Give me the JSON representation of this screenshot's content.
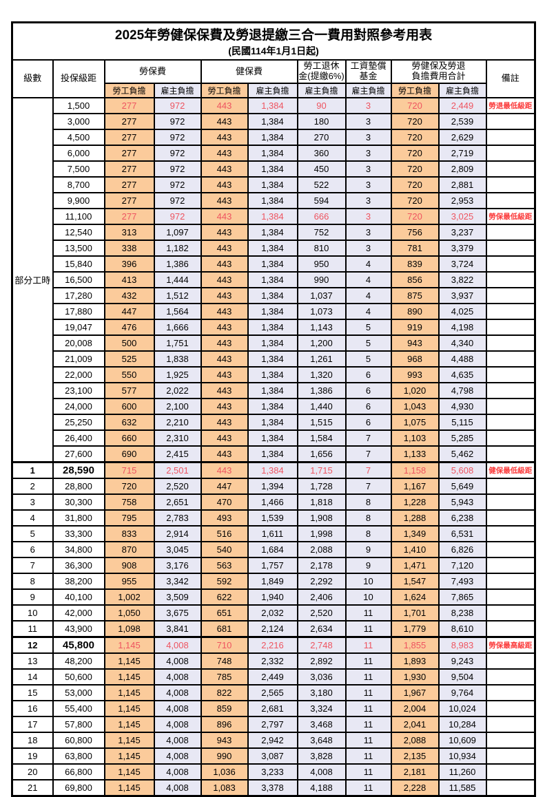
{
  "title": "2025年勞健保保費及勞退提繳三合一費用對照參考用表",
  "subtitle": "(民國114年1月1日起)",
  "header": {
    "level": "級數",
    "bracket": "投保級距",
    "labor_insurance": "勞保費",
    "health_insurance": "健保費",
    "pension_line1": "勞工退休",
    "pension_line2": "金(提繳6%)",
    "wage_fund_line1": "工資墊償",
    "wage_fund_line2": "基金",
    "total_line1": "勞健保及勞退",
    "total_line2": "負擔費用合計",
    "note": "備註",
    "employee_share": "勞工負擔",
    "employer_share": "雇主負擔"
  },
  "part_time_label": "部分工時",
  "part_time_rowspan": 23,
  "colors": {
    "employee_column_bg": "#fbcb9b",
    "employer_column_bg": "#e8e8f4",
    "highlight_value_red": "#ee5460",
    "note_red": "#fb3b3b"
  },
  "rows": [
    {
      "level": "",
      "bracket": "1,500",
      "values": [
        "277",
        "972",
        "443",
        "1,384",
        "90",
        "3",
        "720",
        "2,449"
      ],
      "note": "勞退最低級距",
      "red": true,
      "bold": false,
      "thickTop": false
    },
    {
      "level": "",
      "bracket": "3,000",
      "values": [
        "277",
        "972",
        "443",
        "1,384",
        "180",
        "3",
        "720",
        "2,539"
      ],
      "note": "",
      "red": false,
      "bold": false,
      "thickTop": false
    },
    {
      "level": "",
      "bracket": "4,500",
      "values": [
        "277",
        "972",
        "443",
        "1,384",
        "270",
        "3",
        "720",
        "2,629"
      ],
      "note": "",
      "red": false,
      "bold": false,
      "thickTop": false
    },
    {
      "level": "",
      "bracket": "6,000",
      "values": [
        "277",
        "972",
        "443",
        "1,384",
        "360",
        "3",
        "720",
        "2,719"
      ],
      "note": "",
      "red": false,
      "bold": false,
      "thickTop": false
    },
    {
      "level": "",
      "bracket": "7,500",
      "values": [
        "277",
        "972",
        "443",
        "1,384",
        "450",
        "3",
        "720",
        "2,809"
      ],
      "note": "",
      "red": false,
      "bold": false,
      "thickTop": false
    },
    {
      "level": "",
      "bracket": "8,700",
      "values": [
        "277",
        "972",
        "443",
        "1,384",
        "522",
        "3",
        "720",
        "2,881"
      ],
      "note": "",
      "red": false,
      "bold": false,
      "thickTop": false
    },
    {
      "level": "",
      "bracket": "9,900",
      "values": [
        "277",
        "972",
        "443",
        "1,384",
        "594",
        "3",
        "720",
        "2,953"
      ],
      "note": "",
      "red": false,
      "bold": false,
      "thickTop": false
    },
    {
      "level": "",
      "bracket": "11,100",
      "values": [
        "277",
        "972",
        "443",
        "1,384",
        "666",
        "3",
        "720",
        "3,025"
      ],
      "note": "勞保最低級距",
      "red": true,
      "bold": false,
      "thickTop": false
    },
    {
      "level": "",
      "bracket": "12,540",
      "values": [
        "313",
        "1,097",
        "443",
        "1,384",
        "752",
        "3",
        "756",
        "3,237"
      ],
      "note": "",
      "red": false,
      "bold": false,
      "thickTop": false
    },
    {
      "level": "",
      "bracket": "13,500",
      "values": [
        "338",
        "1,182",
        "443",
        "1,384",
        "810",
        "3",
        "781",
        "3,379"
      ],
      "note": "",
      "red": false,
      "bold": false,
      "thickTop": false
    },
    {
      "level": "",
      "bracket": "15,840",
      "values": [
        "396",
        "1,386",
        "443",
        "1,384",
        "950",
        "4",
        "839",
        "3,724"
      ],
      "note": "",
      "red": false,
      "bold": false,
      "thickTop": false
    },
    {
      "level": "",
      "bracket": "16,500",
      "values": [
        "413",
        "1,444",
        "443",
        "1,384",
        "990",
        "4",
        "856",
        "3,822"
      ],
      "note": "",
      "red": false,
      "bold": false,
      "thickTop": false
    },
    {
      "level": "",
      "bracket": "17,280",
      "values": [
        "432",
        "1,512",
        "443",
        "1,384",
        "1,037",
        "4",
        "875",
        "3,937"
      ],
      "note": "",
      "red": false,
      "bold": false,
      "thickTop": false
    },
    {
      "level": "",
      "bracket": "17,880",
      "values": [
        "447",
        "1,564",
        "443",
        "1,384",
        "1,073",
        "4",
        "890",
        "4,025"
      ],
      "note": "",
      "red": false,
      "bold": false,
      "thickTop": false
    },
    {
      "level": "",
      "bracket": "19,047",
      "values": [
        "476",
        "1,666",
        "443",
        "1,384",
        "1,143",
        "5",
        "919",
        "4,198"
      ],
      "note": "",
      "red": false,
      "bold": false,
      "thickTop": false
    },
    {
      "level": "",
      "bracket": "20,008",
      "values": [
        "500",
        "1,751",
        "443",
        "1,384",
        "1,200",
        "5",
        "943",
        "4,340"
      ],
      "note": "",
      "red": false,
      "bold": false,
      "thickTop": false
    },
    {
      "level": "",
      "bracket": "21,009",
      "values": [
        "525",
        "1,838",
        "443",
        "1,384",
        "1,261",
        "5",
        "968",
        "4,488"
      ],
      "note": "",
      "red": false,
      "bold": false,
      "thickTop": false
    },
    {
      "level": "",
      "bracket": "22,000",
      "values": [
        "550",
        "1,925",
        "443",
        "1,384",
        "1,320",
        "6",
        "993",
        "4,635"
      ],
      "note": "",
      "red": false,
      "bold": false,
      "thickTop": false
    },
    {
      "level": "",
      "bracket": "23,100",
      "values": [
        "577",
        "2,022",
        "443",
        "1,384",
        "1,386",
        "6",
        "1,020",
        "4,798"
      ],
      "note": "",
      "red": false,
      "bold": false,
      "thickTop": false
    },
    {
      "level": "",
      "bracket": "24,000",
      "values": [
        "600",
        "2,100",
        "443",
        "1,384",
        "1,440",
        "6",
        "1,043",
        "4,930"
      ],
      "note": "",
      "red": false,
      "bold": false,
      "thickTop": false
    },
    {
      "level": "",
      "bracket": "25,250",
      "values": [
        "632",
        "2,210",
        "443",
        "1,384",
        "1,515",
        "6",
        "1,075",
        "5,115"
      ],
      "note": "",
      "red": false,
      "bold": false,
      "thickTop": false
    },
    {
      "level": "",
      "bracket": "26,400",
      "values": [
        "660",
        "2,310",
        "443",
        "1,384",
        "1,584",
        "7",
        "1,103",
        "5,285"
      ],
      "note": "",
      "red": false,
      "bold": false,
      "thickTop": false
    },
    {
      "level": "",
      "bracket": "27,600",
      "values": [
        "690",
        "2,415",
        "443",
        "1,384",
        "1,656",
        "7",
        "1,133",
        "5,462"
      ],
      "note": "",
      "red": false,
      "bold": false,
      "thickTop": false
    },
    {
      "level": "1",
      "bracket": "28,590",
      "values": [
        "715",
        "2,501",
        "443",
        "1,384",
        "1,715",
        "7",
        "1,158",
        "5,608"
      ],
      "note": "健保最低級距",
      "red": true,
      "bold": true,
      "thickTop": true
    },
    {
      "level": "2",
      "bracket": "28,800",
      "values": [
        "720",
        "2,520",
        "447",
        "1,394",
        "1,728",
        "7",
        "1,167",
        "5,649"
      ],
      "note": "",
      "red": false,
      "bold": false,
      "thickTop": false
    },
    {
      "level": "3",
      "bracket": "30,300",
      "values": [
        "758",
        "2,651",
        "470",
        "1,466",
        "1,818",
        "8",
        "1,228",
        "5,943"
      ],
      "note": "",
      "red": false,
      "bold": false,
      "thickTop": false
    },
    {
      "level": "4",
      "bracket": "31,800",
      "values": [
        "795",
        "2,783",
        "493",
        "1,539",
        "1,908",
        "8",
        "1,288",
        "6,238"
      ],
      "note": "",
      "red": false,
      "bold": false,
      "thickTop": false
    },
    {
      "level": "5",
      "bracket": "33,300",
      "values": [
        "833",
        "2,914",
        "516",
        "1,611",
        "1,998",
        "8",
        "1,349",
        "6,531"
      ],
      "note": "",
      "red": false,
      "bold": false,
      "thickTop": false
    },
    {
      "level": "6",
      "bracket": "34,800",
      "values": [
        "870",
        "3,045",
        "540",
        "1,684",
        "2,088",
        "9",
        "1,410",
        "6,826"
      ],
      "note": "",
      "red": false,
      "bold": false,
      "thickTop": false
    },
    {
      "level": "7",
      "bracket": "36,300",
      "values": [
        "908",
        "3,176",
        "563",
        "1,757",
        "2,178",
        "9",
        "1,471",
        "7,120"
      ],
      "note": "",
      "red": false,
      "bold": false,
      "thickTop": false
    },
    {
      "level": "8",
      "bracket": "38,200",
      "values": [
        "955",
        "3,342",
        "592",
        "1,849",
        "2,292",
        "10",
        "1,547",
        "7,493"
      ],
      "note": "",
      "red": false,
      "bold": false,
      "thickTop": false
    },
    {
      "level": "9",
      "bracket": "40,100",
      "values": [
        "1,002",
        "3,509",
        "622",
        "1,940",
        "2,406",
        "10",
        "1,624",
        "7,865"
      ],
      "note": "",
      "red": false,
      "bold": false,
      "thickTop": false
    },
    {
      "level": "10",
      "bracket": "42,000",
      "values": [
        "1,050",
        "3,675",
        "651",
        "2,032",
        "2,520",
        "11",
        "1,701",
        "8,238"
      ],
      "note": "",
      "red": false,
      "bold": false,
      "thickTop": false
    },
    {
      "level": "11",
      "bracket": "43,900",
      "values": [
        "1,098",
        "3,841",
        "681",
        "2,124",
        "2,634",
        "11",
        "1,779",
        "8,610"
      ],
      "note": "",
      "red": false,
      "bold": false,
      "thickTop": false
    },
    {
      "level": "12",
      "bracket": "45,800",
      "values": [
        "1,145",
        "4,008",
        "710",
        "2,216",
        "2,748",
        "11",
        "1,855",
        "8,983"
      ],
      "note": "勞保最高級距",
      "red": true,
      "bold": true,
      "thickTop": true
    },
    {
      "level": "13",
      "bracket": "48,200",
      "values": [
        "1,145",
        "4,008",
        "748",
        "2,332",
        "2,892",
        "11",
        "1,893",
        "9,243"
      ],
      "note": "",
      "red": false,
      "bold": false,
      "thickTop": false
    },
    {
      "level": "14",
      "bracket": "50,600",
      "values": [
        "1,145",
        "4,008",
        "785",
        "2,449",
        "3,036",
        "11",
        "1,930",
        "9,504"
      ],
      "note": "",
      "red": false,
      "bold": false,
      "thickTop": false
    },
    {
      "level": "15",
      "bracket": "53,000",
      "values": [
        "1,145",
        "4,008",
        "822",
        "2,565",
        "3,180",
        "11",
        "1,967",
        "9,764"
      ],
      "note": "",
      "red": false,
      "bold": false,
      "thickTop": false
    },
    {
      "level": "16",
      "bracket": "55,400",
      "values": [
        "1,145",
        "4,008",
        "859",
        "2,681",
        "3,324",
        "11",
        "2,004",
        "10,024"
      ],
      "note": "",
      "red": false,
      "bold": false,
      "thickTop": false
    },
    {
      "level": "17",
      "bracket": "57,800",
      "values": [
        "1,145",
        "4,008",
        "896",
        "2,797",
        "3,468",
        "11",
        "2,041",
        "10,284"
      ],
      "note": "",
      "red": false,
      "bold": false,
      "thickTop": false
    },
    {
      "level": "18",
      "bracket": "60,800",
      "values": [
        "1,145",
        "4,008",
        "943",
        "2,942",
        "3,648",
        "11",
        "2,088",
        "10,609"
      ],
      "note": "",
      "red": false,
      "bold": false,
      "thickTop": false
    },
    {
      "level": "19",
      "bracket": "63,800",
      "values": [
        "1,145",
        "4,008",
        "990",
        "3,087",
        "3,828",
        "11",
        "2,135",
        "10,934"
      ],
      "note": "",
      "red": false,
      "bold": false,
      "thickTop": false
    },
    {
      "level": "20",
      "bracket": "66,800",
      "values": [
        "1,145",
        "4,008",
        "1,036",
        "3,233",
        "4,008",
        "11",
        "2,181",
        "11,260"
      ],
      "note": "",
      "red": false,
      "bold": false,
      "thickTop": false
    },
    {
      "level": "21",
      "bracket": "69,800",
      "values": [
        "1,145",
        "4,008",
        "1,083",
        "3,378",
        "4,188",
        "11",
        "2,228",
        "11,585"
      ],
      "note": "",
      "red": false,
      "bold": false,
      "thickTop": false
    }
  ]
}
